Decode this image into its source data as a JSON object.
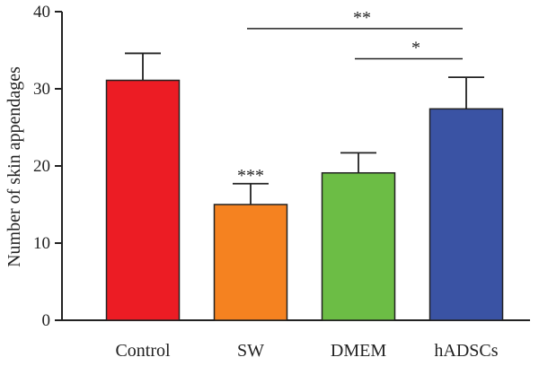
{
  "chart_data": {
    "type": "bar",
    "ylabel": "Number of skin appendages",
    "xlabel": "",
    "ylim": [
      0,
      40
    ],
    "yticks": [
      0,
      10,
      20,
      30,
      40
    ],
    "categories": [
      "Control",
      "SW",
      "DMEM",
      "hADSCs"
    ],
    "values": [
      31.1,
      15.0,
      19.1,
      27.4
    ],
    "errors": [
      3.5,
      2.7,
      2.6,
      4.1
    ],
    "colors": [
      "#ec1c24",
      "#f58220",
      "#6cbd45",
      "#3a53a4"
    ],
    "bar_annotations": [
      {
        "category": "SW",
        "label": "***"
      }
    ],
    "comparisons": [
      {
        "from": "SW",
        "to": "hADSCs",
        "label": "**",
        "y": 37.8
      },
      {
        "from": "DMEM",
        "to": "hADSCs",
        "label": "*",
        "y": 33.9
      }
    ]
  }
}
